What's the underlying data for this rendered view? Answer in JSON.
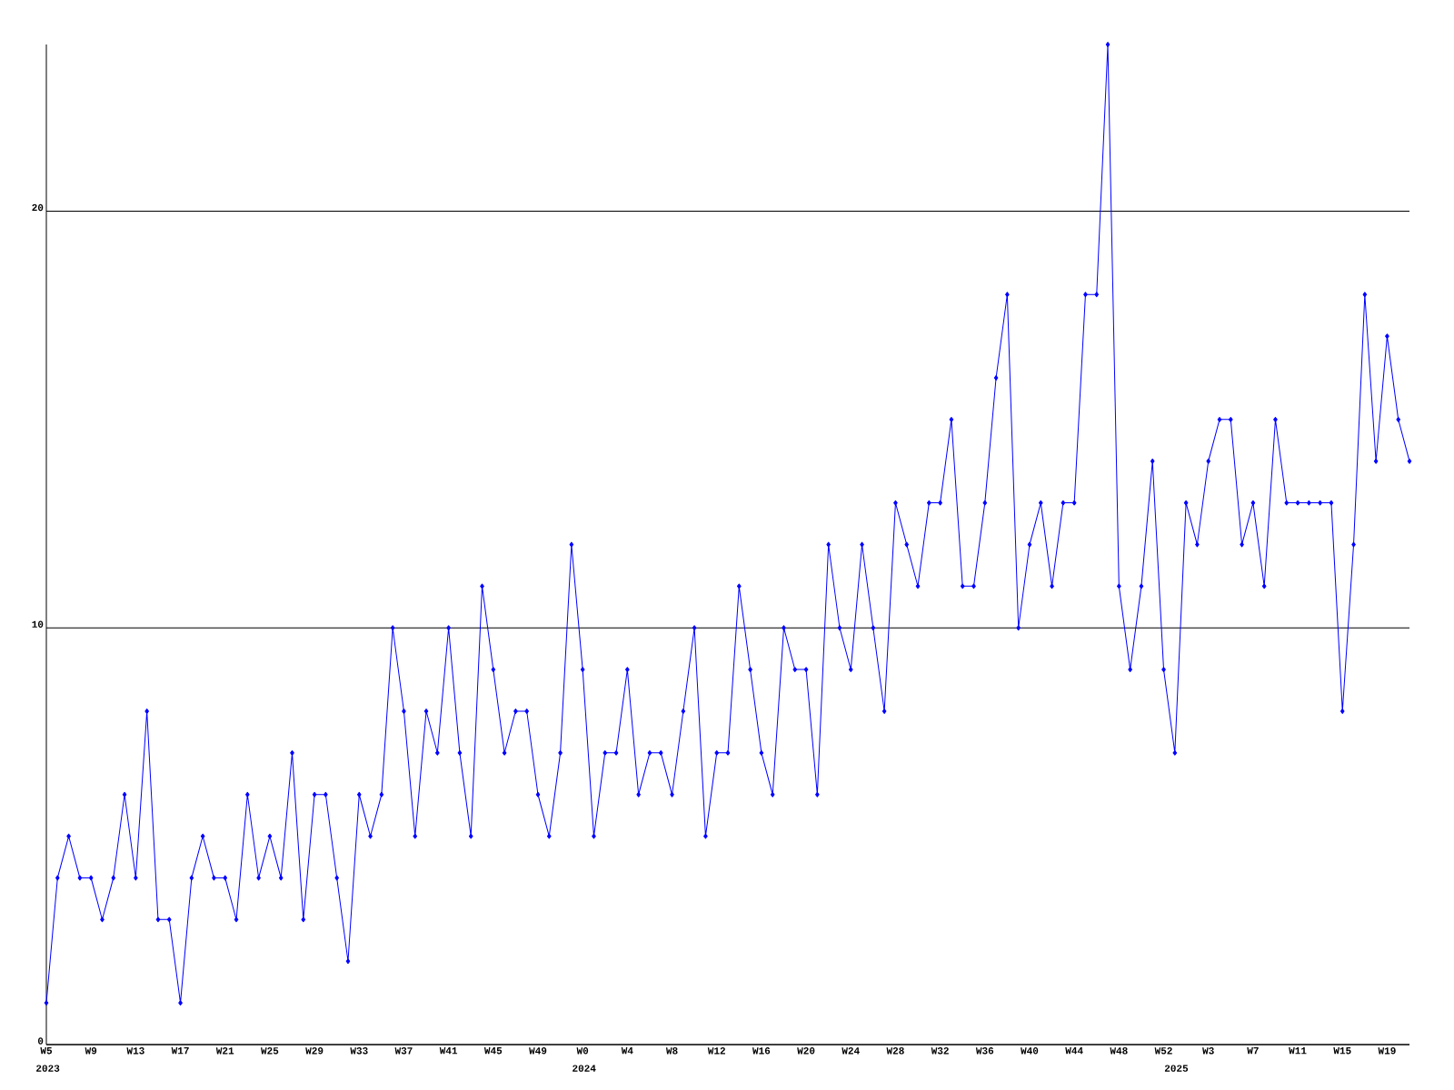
{
  "chart_data": {
    "type": "line",
    "categories": [
      "W5",
      null,
      null,
      null,
      "W9",
      null,
      null,
      null,
      "W13",
      null,
      null,
      null,
      "W17",
      null,
      null,
      null,
      "W21",
      null,
      null,
      null,
      "W25",
      null,
      null,
      null,
      "W29",
      null,
      null,
      null,
      "W33",
      null,
      null,
      null,
      "W37",
      null,
      null,
      null,
      "W41",
      null,
      null,
      null,
      "W45",
      null,
      null,
      null,
      "W49",
      null,
      null,
      null,
      "W0",
      null,
      null,
      null,
      "W4",
      null,
      null,
      null,
      "W8",
      null,
      null,
      null,
      "W12",
      null,
      null,
      null,
      "W16",
      null,
      null,
      null,
      "W20",
      null,
      null,
      null,
      "W24",
      null,
      null,
      null,
      "W28",
      null,
      null,
      null,
      "W32",
      null,
      null,
      null,
      "W36",
      null,
      null,
      null,
      "W40",
      null,
      null,
      null,
      "W44",
      null,
      null,
      null,
      "W48",
      null,
      null,
      null,
      "W52",
      null,
      null,
      null,
      "W3",
      null,
      null,
      null,
      "W7",
      null,
      null,
      null,
      "W11",
      null,
      null,
      null,
      "W15",
      null,
      null,
      null,
      "W19",
      null,
      null
    ],
    "values": [
      1,
      4,
      5,
      4,
      4,
      3,
      4,
      6,
      4,
      8,
      3,
      3,
      1,
      4,
      5,
      4,
      4,
      3,
      6,
      4,
      5,
      4,
      7,
      3,
      6,
      6,
      4,
      2,
      6,
      5,
      6,
      10,
      8,
      5,
      8,
      7,
      10,
      7,
      5,
      11,
      9,
      7,
      8,
      8,
      6,
      5,
      7,
      12,
      9,
      5,
      7,
      7,
      9,
      6,
      7,
      7,
      6,
      8,
      10,
      5,
      7,
      7,
      11,
      9,
      7,
      6,
      10,
      9,
      9,
      6,
      12,
      10,
      9,
      12,
      10,
      8,
      13,
      12,
      11,
      13,
      13,
      15,
      11,
      11,
      13,
      16,
      18,
      10,
      12,
      13,
      11,
      13,
      13,
      18,
      18,
      24,
      11,
      9,
      11,
      14,
      9,
      7,
      13,
      12,
      14,
      15,
      15,
      12,
      13,
      11,
      15,
      13,
      13,
      13,
      13,
      13,
      8,
      12,
      18,
      14,
      17,
      15,
      14
    ],
    "color": "#0000ff",
    "ylim": [
      0,
      24
    ],
    "yticks": [
      0,
      10,
      20
    ],
    "grid": "y",
    "marker": "diamond",
    "line_style": "solid",
    "annotations": [
      "2023",
      "2024",
      "2025"
    ]
  }
}
